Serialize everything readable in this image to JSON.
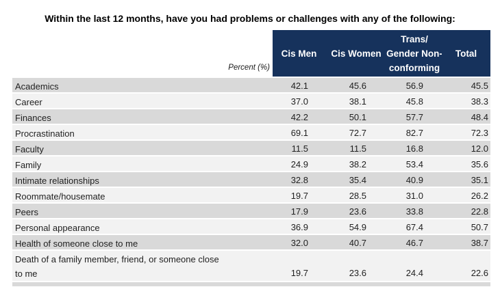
{
  "title": "Within the last 12 months, have you had problems or challenges with any of the following:",
  "unit_label": "Percent (%)",
  "colors": {
    "header_bg": "#16325c",
    "header_text": "#ffffff",
    "row_shade": "#d9d9d9",
    "row_light": "#f2f2f2",
    "text": "#262626"
  },
  "header": {
    "columns": [
      {
        "name": "Cis Men",
        "lines": [
          "Cis Men"
        ]
      },
      {
        "name": "Cis Women",
        "lines": [
          "Cis Women"
        ]
      },
      {
        "name": "Trans/Gender Non-conforming",
        "lines": [
          "Trans/",
          "Gender Non-",
          "conforming"
        ]
      },
      {
        "name": "Total",
        "lines": [
          "Total"
        ]
      }
    ]
  },
  "table": {
    "rows": [
      {
        "label": "Academics",
        "values": [
          "42.1",
          "45.6",
          "56.9",
          "45.5"
        ]
      },
      {
        "label": "Career",
        "values": [
          "37.0",
          "38.1",
          "45.8",
          "38.3"
        ]
      },
      {
        "label": "Finances",
        "values": [
          "42.2",
          "50.1",
          "57.7",
          "48.4"
        ]
      },
      {
        "label": "Procrastination",
        "values": [
          "69.1",
          "72.7",
          "82.7",
          "72.3"
        ]
      },
      {
        "label": "Faculty",
        "values": [
          "11.5",
          "11.5",
          "16.8",
          "12.0"
        ]
      },
      {
        "label": "Family",
        "values": [
          "24.9",
          "38.2",
          "53.4",
          "35.6"
        ]
      },
      {
        "label": "Intimate relationships",
        "values": [
          "32.8",
          "35.4",
          "40.9",
          "35.1"
        ]
      },
      {
        "label": "Roommate/housemate",
        "values": [
          "19.7",
          "28.5",
          "31.0",
          "26.2"
        ]
      },
      {
        "label": "Peers",
        "values": [
          "17.9",
          "23.6",
          "33.8",
          "22.8"
        ]
      },
      {
        "label": "Personal appearance",
        "values": [
          "36.9",
          "54.9",
          "67.4",
          "50.7"
        ]
      },
      {
        "label": "Health of someone close to me",
        "values": [
          "32.0",
          "40.7",
          "46.7",
          "38.7"
        ]
      },
      {
        "label": "Death of a family member, friend, or someone close\nto me",
        "values": [
          "19.7",
          "23.6",
          "24.4",
          "22.6"
        ]
      }
    ]
  },
  "chart_data": {
    "type": "table",
    "title": "Within the last 12 months, have you had problems or challenges with any of the following:",
    "unit": "Percent (%)",
    "columns": [
      "Cis Men",
      "Cis Women",
      "Trans/Gender Non-conforming",
      "Total"
    ],
    "categories": [
      "Academics",
      "Career",
      "Finances",
      "Procrastination",
      "Faculty",
      "Family",
      "Intimate relationships",
      "Roommate/housemate",
      "Peers",
      "Personal appearance",
      "Health of someone close to me",
      "Death of a family member, friend, or someone close to me"
    ],
    "series": [
      {
        "name": "Cis Men",
        "values": [
          42.1,
          37.0,
          42.2,
          69.1,
          11.5,
          24.9,
          32.8,
          19.7,
          17.9,
          36.9,
          32.0,
          19.7
        ]
      },
      {
        "name": "Cis Women",
        "values": [
          45.6,
          38.1,
          50.1,
          72.7,
          11.5,
          38.2,
          35.4,
          28.5,
          23.6,
          54.9,
          40.7,
          23.6
        ]
      },
      {
        "name": "Trans/Gender Non-conforming",
        "values": [
          56.9,
          45.8,
          57.7,
          82.7,
          16.8,
          53.4,
          40.9,
          31.0,
          33.8,
          67.4,
          46.7,
          24.4
        ]
      },
      {
        "name": "Total",
        "values": [
          45.5,
          38.3,
          48.4,
          72.3,
          12.0,
          35.6,
          35.1,
          26.2,
          22.8,
          50.7,
          38.7,
          22.6
        ]
      }
    ],
    "layout": {
      "header_background": "#16325c",
      "row_striping": [
        "#d9d9d9",
        "#f2f2f2"
      ],
      "values_alignment": "right",
      "grid": false
    }
  }
}
